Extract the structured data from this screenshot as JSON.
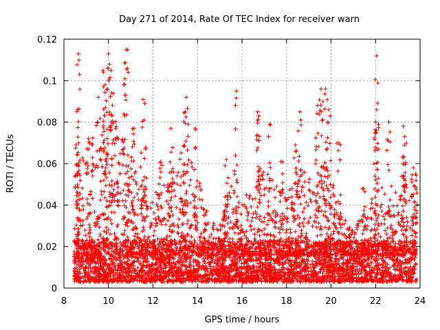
{
  "chart_data": {
    "type": "scatter",
    "title": "Day 271 of 2014, Rate Of TEC Index for receiver warn",
    "xlabel": "GPS time / hours",
    "ylabel": "ROTI / TECUs",
    "xlim": [
      8,
      24
    ],
    "ylim": [
      0,
      0.12
    ],
    "xticks": [
      8,
      10,
      12,
      14,
      16,
      18,
      20,
      22,
      24
    ],
    "yticks": [
      0,
      0.02,
      0.04,
      0.06,
      0.08,
      0.1,
      0.12
    ],
    "xtick_labels": [
      "8",
      "10",
      "12",
      "14",
      "16",
      "18",
      "20",
      "22",
      "24"
    ],
    "ytick_labels": [
      "0",
      "0.02",
      "0.04",
      "0.06",
      "0.08",
      "0.1",
      "0.12"
    ],
    "grid": true,
    "marker": "+",
    "color": "#ff0000",
    "data_range_x": [
      8.45,
      23.85
    ],
    "baseline": {
      "typical_low": 0.006,
      "typical_high": 0.02
    },
    "peaks": [
      {
        "x": 8.65,
        "y": 0.113
      },
      {
        "x": 8.7,
        "y": 0.103
      },
      {
        "x": 8.6,
        "y": 0.086
      },
      {
        "x": 8.55,
        "y": 0.069
      },
      {
        "x": 9.1,
        "y": 0.072
      },
      {
        "x": 9.55,
        "y": 0.092
      },
      {
        "x": 9.75,
        "y": 0.105
      },
      {
        "x": 9.85,
        "y": 0.098
      },
      {
        "x": 10.0,
        "y": 0.113
      },
      {
        "x": 10.05,
        "y": 0.108
      },
      {
        "x": 10.15,
        "y": 0.094
      },
      {
        "x": 10.35,
        "y": 0.078
      },
      {
        "x": 10.7,
        "y": 0.098
      },
      {
        "x": 10.8,
        "y": 0.115
      },
      {
        "x": 10.85,
        "y": 0.106
      },
      {
        "x": 11.15,
        "y": 0.077
      },
      {
        "x": 11.55,
        "y": 0.091
      },
      {
        "x": 11.6,
        "y": 0.081
      },
      {
        "x": 12.35,
        "y": 0.061
      },
      {
        "x": 12.8,
        "y": 0.077
      },
      {
        "x": 13.5,
        "y": 0.092
      },
      {
        "x": 13.45,
        "y": 0.085
      },
      {
        "x": 13.9,
        "y": 0.077
      },
      {
        "x": 15.3,
        "y": 0.062
      },
      {
        "x": 15.75,
        "y": 0.095
      },
      {
        "x": 16.7,
        "y": 0.085
      },
      {
        "x": 16.75,
        "y": 0.083
      },
      {
        "x": 17.25,
        "y": 0.079
      },
      {
        "x": 17.75,
        "y": 0.061
      },
      {
        "x": 18.4,
        "y": 0.069
      },
      {
        "x": 18.6,
        "y": 0.085
      },
      {
        "x": 19.4,
        "y": 0.088
      },
      {
        "x": 19.55,
        "y": 0.096
      },
      {
        "x": 19.75,
        "y": 0.096
      },
      {
        "x": 19.9,
        "y": 0.086
      },
      {
        "x": 20.35,
        "y": 0.07
      },
      {
        "x": 21.45,
        "y": 0.048
      },
      {
        "x": 22.05,
        "y": 0.086
      },
      {
        "x": 22.0,
        "y": 0.08
      },
      {
        "x": 22.05,
        "y": 0.112
      },
      {
        "x": 22.6,
        "y": 0.08
      },
      {
        "x": 23.25,
        "y": 0.078
      },
      {
        "x": 23.3,
        "y": 0.073
      },
      {
        "x": 23.7,
        "y": 0.058
      },
      {
        "x": 23.8,
        "y": 0.055
      }
    ],
    "activity_envelope": [
      {
        "x": 8.5,
        "upper": 0.05
      },
      {
        "x": 9.0,
        "upper": 0.07
      },
      {
        "x": 9.5,
        "upper": 0.085
      },
      {
        "x": 10.0,
        "upper": 0.1
      },
      {
        "x": 10.5,
        "upper": 0.075
      },
      {
        "x": 11.0,
        "upper": 0.065
      },
      {
        "x": 11.5,
        "upper": 0.06
      },
      {
        "x": 12.0,
        "upper": 0.045
      },
      {
        "x": 12.5,
        "upper": 0.05
      },
      {
        "x": 13.0,
        "upper": 0.06
      },
      {
        "x": 13.5,
        "upper": 0.07
      },
      {
        "x": 14.0,
        "upper": 0.055
      },
      {
        "x": 14.5,
        "upper": 0.035
      },
      {
        "x": 15.0,
        "upper": 0.03
      },
      {
        "x": 15.5,
        "upper": 0.05
      },
      {
        "x": 16.0,
        "upper": 0.04
      },
      {
        "x": 16.5,
        "upper": 0.055
      },
      {
        "x": 17.0,
        "upper": 0.06
      },
      {
        "x": 17.5,
        "upper": 0.05
      },
      {
        "x": 18.0,
        "upper": 0.045
      },
      {
        "x": 18.5,
        "upper": 0.065
      },
      {
        "x": 19.0,
        "upper": 0.055
      },
      {
        "x": 19.5,
        "upper": 0.075
      },
      {
        "x": 20.0,
        "upper": 0.055
      },
      {
        "x": 20.5,
        "upper": 0.035
      },
      {
        "x": 21.0,
        "upper": 0.03
      },
      {
        "x": 21.5,
        "upper": 0.035
      },
      {
        "x": 22.0,
        "upper": 0.05
      },
      {
        "x": 22.5,
        "upper": 0.05
      },
      {
        "x": 23.0,
        "upper": 0.055
      },
      {
        "x": 23.5,
        "upper": 0.055
      },
      {
        "x": 23.85,
        "upper": 0.05
      }
    ]
  }
}
